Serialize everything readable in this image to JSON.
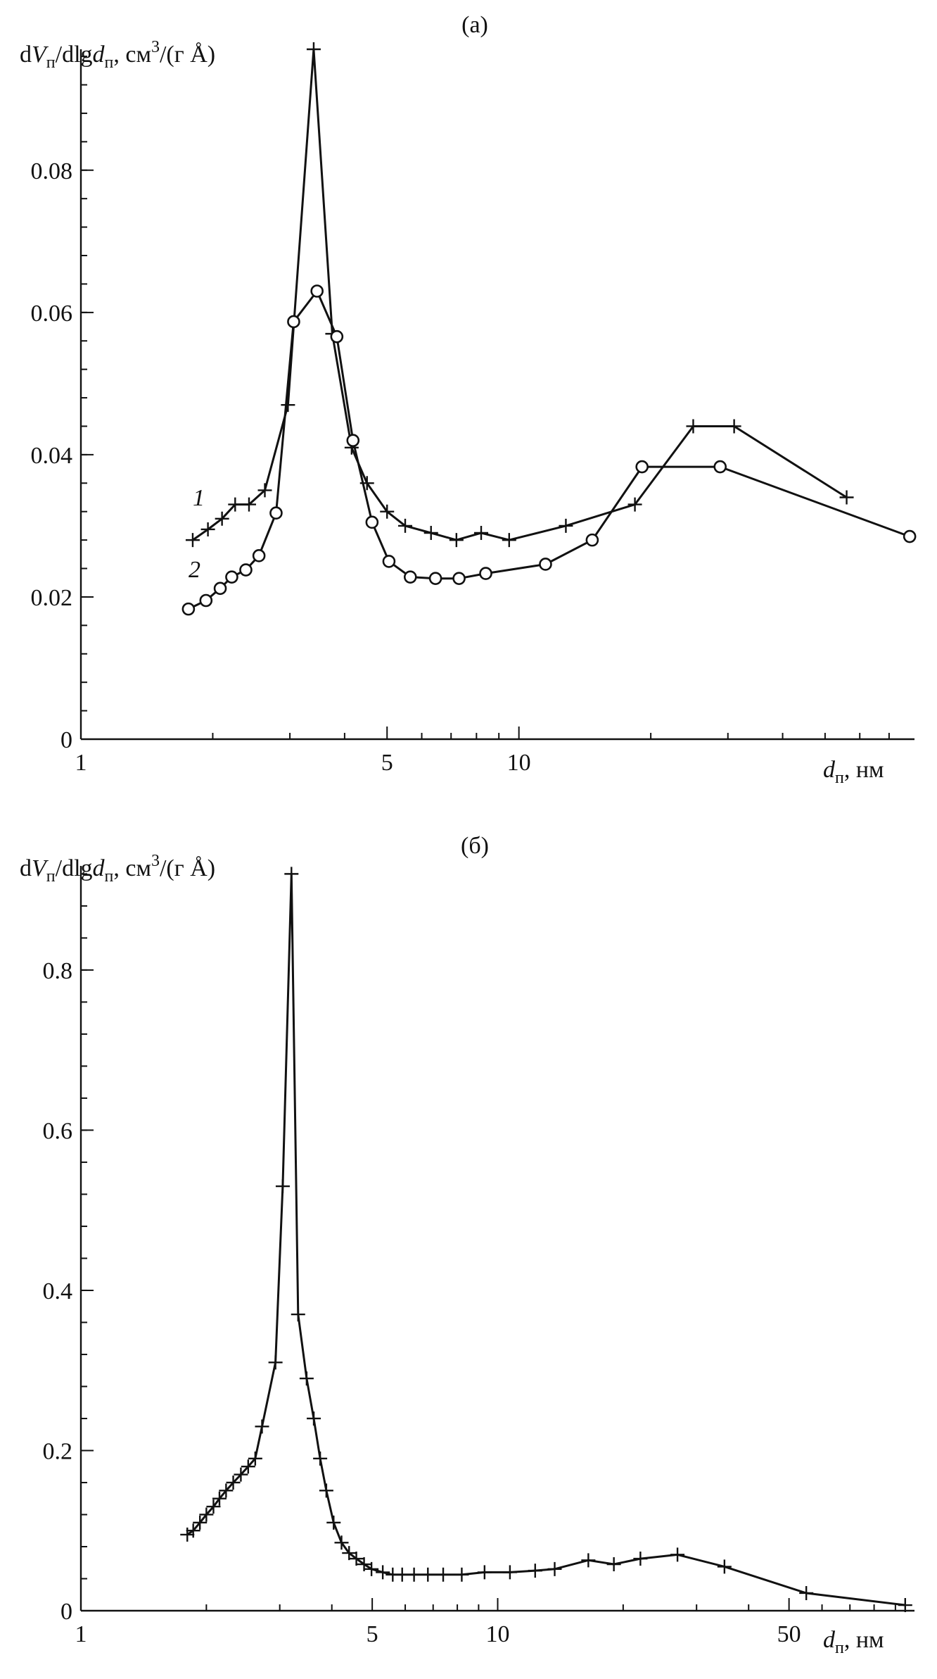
{
  "chart_data": [
    {
      "panel": "(а)",
      "type": "line",
      "title": "(а)",
      "ylabel_parts": {
        "d": "d",
        "V": "V",
        "sub1": "п",
        "mid": "/dlg",
        "d2": "d",
        "sub2": "п",
        "unit": ", см",
        "sup": "3",
        "unit_tail": "/(г Å)"
      },
      "xlabel_parts": {
        "d": "d",
        "sub": "п",
        "unit": ", нм"
      },
      "xscale": "log",
      "xlim": [
        1,
        80
      ],
      "ylim": [
        0,
        0.097
      ],
      "xticks": [
        1,
        5,
        10
      ],
      "xtick_labels": [
        "1",
        "5",
        "10"
      ],
      "yticks": [
        0,
        0.02,
        0.04,
        0.06,
        0.08
      ],
      "ytick_labels": [
        "0",
        "0.02",
        "0.04",
        "0.06",
        "0.08"
      ],
      "series": [
        {
          "name": "1",
          "marker": "plus",
          "x": [
            1.8,
            1.95,
            2.1,
            2.25,
            2.42,
            2.63,
            2.97,
            3.4,
            3.75,
            4.15,
            4.5,
            5.0,
            5.5,
            6.3,
            7.2,
            8.2,
            9.5,
            12.8,
            18.4,
            25,
            31,
            56
          ],
          "y": [
            0.028,
            0.0295,
            0.031,
            0.033,
            0.033,
            0.035,
            0.047,
            0.097,
            0.057,
            0.041,
            0.036,
            0.032,
            0.03,
            0.029,
            0.028,
            0.029,
            0.028,
            0.03,
            0.033,
            0.044,
            0.044,
            0.034
          ]
        },
        {
          "name": "2",
          "marker": "circle",
          "x": [
            1.76,
            1.93,
            2.08,
            2.21,
            2.38,
            2.55,
            2.79,
            3.06,
            3.46,
            3.84,
            4.18,
            4.62,
            5.05,
            5.65,
            6.45,
            7.3,
            8.4,
            11.5,
            14.7,
            19.1,
            28.8,
            78
          ],
          "y": [
            0.0183,
            0.0195,
            0.0212,
            0.0228,
            0.0238,
            0.0258,
            0.0318,
            0.0587,
            0.063,
            0.0566,
            0.042,
            0.0305,
            0.025,
            0.0228,
            0.0226,
            0.0226,
            0.0233,
            0.0246,
            0.028,
            0.0383,
            0.0383,
            0.0285
          ]
        }
      ],
      "curve_labels": [
        "1",
        "2"
      ],
      "grid": false,
      "legend": "none"
    },
    {
      "panel": "(б)",
      "type": "line",
      "title": "(б)",
      "ylabel_parts": {
        "d": "d",
        "V": "V",
        "sub1": "п",
        "mid": "/dlg",
        "d2": "d",
        "sub2": "п",
        "unit": ", см",
        "sup": "3",
        "unit_tail": "/(г Å)"
      },
      "xlabel_parts": {
        "d": "d",
        "sub": "п",
        "unit": ", нм"
      },
      "xscale": "log",
      "xlim": [
        1,
        100
      ],
      "ylim": [
        0,
        0.93
      ],
      "xticks": [
        1,
        5,
        10,
        50
      ],
      "xtick_labels": [
        "1",
        "5",
        "10",
        "50"
      ],
      "yticks": [
        0,
        0.2,
        0.4,
        0.6,
        0.8
      ],
      "ytick_labels": [
        "0",
        "0.2",
        "0.4",
        "0.6",
        "0.8"
      ],
      "series": [
        {
          "name": "",
          "marker": "plus",
          "x": [
            1.8,
            1.86,
            1.93,
            2.0,
            2.08,
            2.15,
            2.23,
            2.32,
            2.42,
            2.52,
            2.62,
            2.72,
            2.93,
            3.05,
            3.2,
            3.32,
            3.48,
            3.62,
            3.75,
            3.88,
            4.04,
            4.22,
            4.4,
            4.58,
            4.78,
            4.98,
            5.3,
            5.6,
            5.9,
            6.3,
            6.8,
            7.4,
            8.2,
            9.3,
            10.7,
            12.3,
            13.7,
            16.5,
            19,
            22,
            27,
            35,
            55,
            95
          ],
          "y": [
            0.095,
            0.1,
            0.11,
            0.12,
            0.13,
            0.14,
            0.15,
            0.16,
            0.17,
            0.18,
            0.19,
            0.23,
            0.31,
            0.53,
            0.92,
            0.37,
            0.29,
            0.24,
            0.19,
            0.15,
            0.11,
            0.085,
            0.072,
            0.065,
            0.058,
            0.052,
            0.048,
            0.045,
            0.045,
            0.045,
            0.045,
            0.045,
            0.045,
            0.048,
            0.048,
            0.05,
            0.052,
            0.063,
            0.058,
            0.065,
            0.07,
            0.055,
            0.022,
            0.007
          ]
        }
      ],
      "grid": false,
      "legend": "none"
    }
  ]
}
